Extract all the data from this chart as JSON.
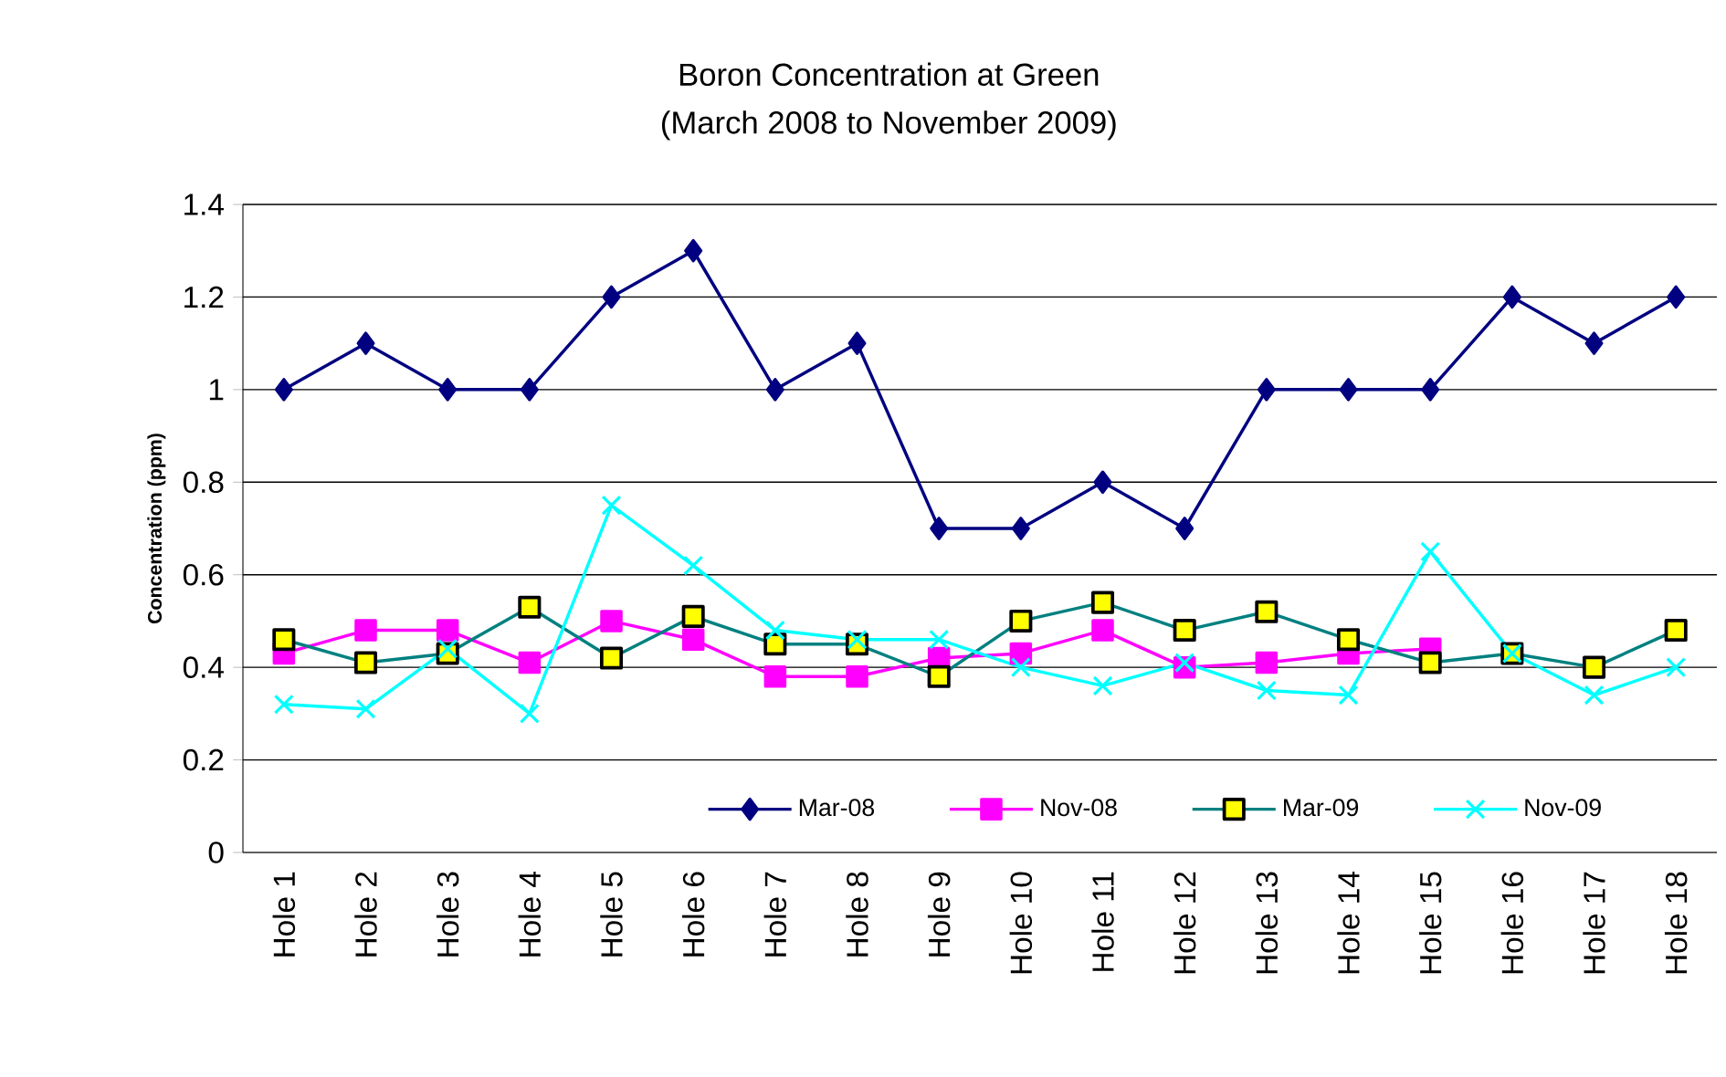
{
  "chart_data": {
    "type": "line",
    "title": "Boron Concentration at Green",
    "subtitle": "(March 2008 to November 2009)",
    "ylabel": "Concentration (ppm)",
    "categories": [
      "Hole 1",
      "Hole 2",
      "Hole 3",
      "Hole 4",
      "Hole 5",
      "Hole 6",
      "Hole 7",
      "Hole 8",
      "Hole 9",
      "Hole 10",
      "Hole 11",
      "Hole 12",
      "Hole 13",
      "Hole 14",
      "Hole 15",
      "Hole 16",
      "Hole 17",
      "Hole 18"
    ],
    "ylim": [
      0,
      1.4
    ],
    "yticks": [
      0,
      0.2,
      0.4,
      0.6,
      0.8,
      1,
      1.2,
      1.4
    ],
    "grid": "y",
    "legend": "bottom",
    "series": [
      {
        "name": "Mar-08",
        "color": "#000080",
        "marker": "diamond",
        "values": [
          1.0,
          1.1,
          1.0,
          1.0,
          1.2,
          1.3,
          1.0,
          1.1,
          0.7,
          0.7,
          0.8,
          0.7,
          1.0,
          1.0,
          1.0,
          1.2,
          1.1,
          1.2
        ]
      },
      {
        "name": "Nov-08",
        "color": "#ff00ff",
        "marker": "square",
        "values": [
          0.43,
          0.48,
          0.48,
          0.41,
          0.5,
          0.46,
          0.38,
          0.38,
          0.42,
          0.43,
          0.48,
          0.4,
          0.41,
          0.43,
          0.44,
          null,
          null,
          null
        ]
      },
      {
        "name": "Mar-09",
        "color": "#008080",
        "colors": [
          "#ffff00",
          "#ffff00",
          "#ffff00",
          "#ffff00",
          "#ffff00",
          "#ffff00",
          "#ffff00",
          "#ffff00",
          "#ffff00",
          "#ffff00",
          "#ffff00",
          "#ffff00",
          "#ffff00",
          "#ffff00",
          "#ffff00",
          "#ffff00",
          "#ffff00",
          "#ffff00"
        ],
        "marker": "square",
        "values": [
          0.46,
          0.41,
          0.43,
          0.53,
          0.42,
          0.51,
          0.45,
          0.45,
          0.38,
          0.5,
          0.54,
          0.48,
          0.52,
          0.46,
          0.41,
          0.43,
          0.4,
          0.48
        ]
      },
      {
        "name": "Nov-09",
        "color": "#00ffff",
        "marker": "cross",
        "values": [
          0.32,
          0.31,
          0.44,
          0.3,
          0.75,
          0.62,
          0.48,
          0.46,
          0.46,
          0.4,
          0.36,
          0.41,
          0.35,
          0.34,
          0.65,
          0.43,
          0.34,
          0.4
        ]
      }
    ]
  }
}
